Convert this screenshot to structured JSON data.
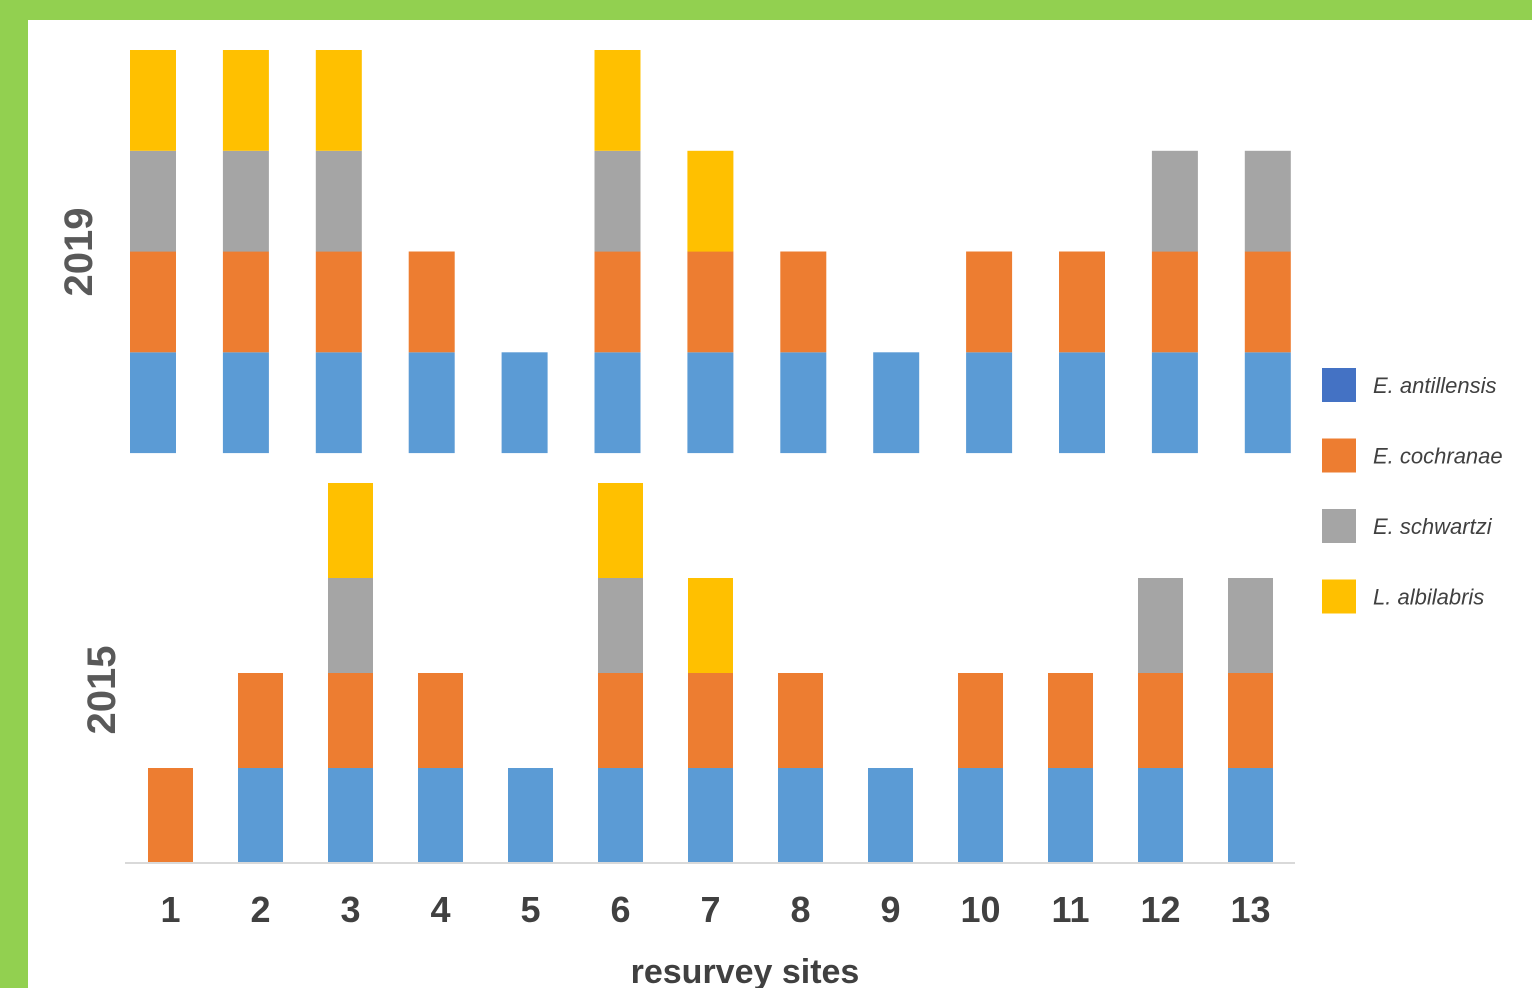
{
  "chart_data": {
    "type": "bar",
    "stacked": true,
    "xlabel": "resurvey sites",
    "categories": [
      "1",
      "2",
      "3",
      "4",
      "5",
      "6",
      "7",
      "8",
      "9",
      "10",
      "11",
      "12",
      "13"
    ],
    "legend_position": "right",
    "legend": [
      {
        "name": "E. antillensis",
        "color": "#4472c4"
      },
      {
        "name": "E. cochranae",
        "color": "#ed7d31"
      },
      {
        "name": "E. schwartzi",
        "color": "#a5a5a5"
      },
      {
        "name": "L. albilabris",
        "color": "#ffc000"
      }
    ],
    "panels": [
      {
        "label": "2019",
        "ylim": [
          0,
          4
        ],
        "series": [
          {
            "name": "E. antillensis",
            "color": "#5b9bd5",
            "values": [
              1,
              1,
              1,
              1,
              1,
              1,
              1,
              1,
              1,
              1,
              1,
              1,
              1
            ]
          },
          {
            "name": "E. cochranae",
            "color": "#ed7d31",
            "values": [
              1,
              1,
              1,
              1,
              0,
              1,
              1,
              1,
              0,
              1,
              1,
              1,
              1
            ]
          },
          {
            "name": "E. schwartzi",
            "color": "#a5a5a5",
            "values": [
              1,
              1,
              1,
              0,
              0,
              1,
              0,
              0,
              0,
              0,
              0,
              1,
              1
            ]
          },
          {
            "name": "L. albilabris",
            "color": "#ffc000",
            "values": [
              1,
              1,
              1,
              0,
              0,
              1,
              1,
              0,
              0,
              0,
              0,
              0,
              0
            ]
          }
        ]
      },
      {
        "label": "2015",
        "ylim": [
          0,
          4
        ],
        "series": [
          {
            "name": "E. antillensis",
            "color": "#5b9bd5",
            "values": [
              0,
              1,
              1,
              1,
              1,
              1,
              1,
              1,
              1,
              1,
              1,
              1,
              1
            ]
          },
          {
            "name": "E. cochranae",
            "color": "#ed7d31",
            "values": [
              1,
              1,
              1,
              1,
              0,
              1,
              1,
              1,
              0,
              1,
              1,
              1,
              1
            ]
          },
          {
            "name": "E. schwartzi",
            "color": "#a5a5a5",
            "values": [
              0,
              0,
              1,
              0,
              0,
              1,
              0,
              0,
              0,
              0,
              0,
              1,
              1
            ]
          },
          {
            "name": "L. albilabris",
            "color": "#ffc000",
            "values": [
              0,
              0,
              1,
              0,
              0,
              1,
              1,
              0,
              0,
              0,
              0,
              0,
              0
            ]
          }
        ]
      }
    ]
  }
}
